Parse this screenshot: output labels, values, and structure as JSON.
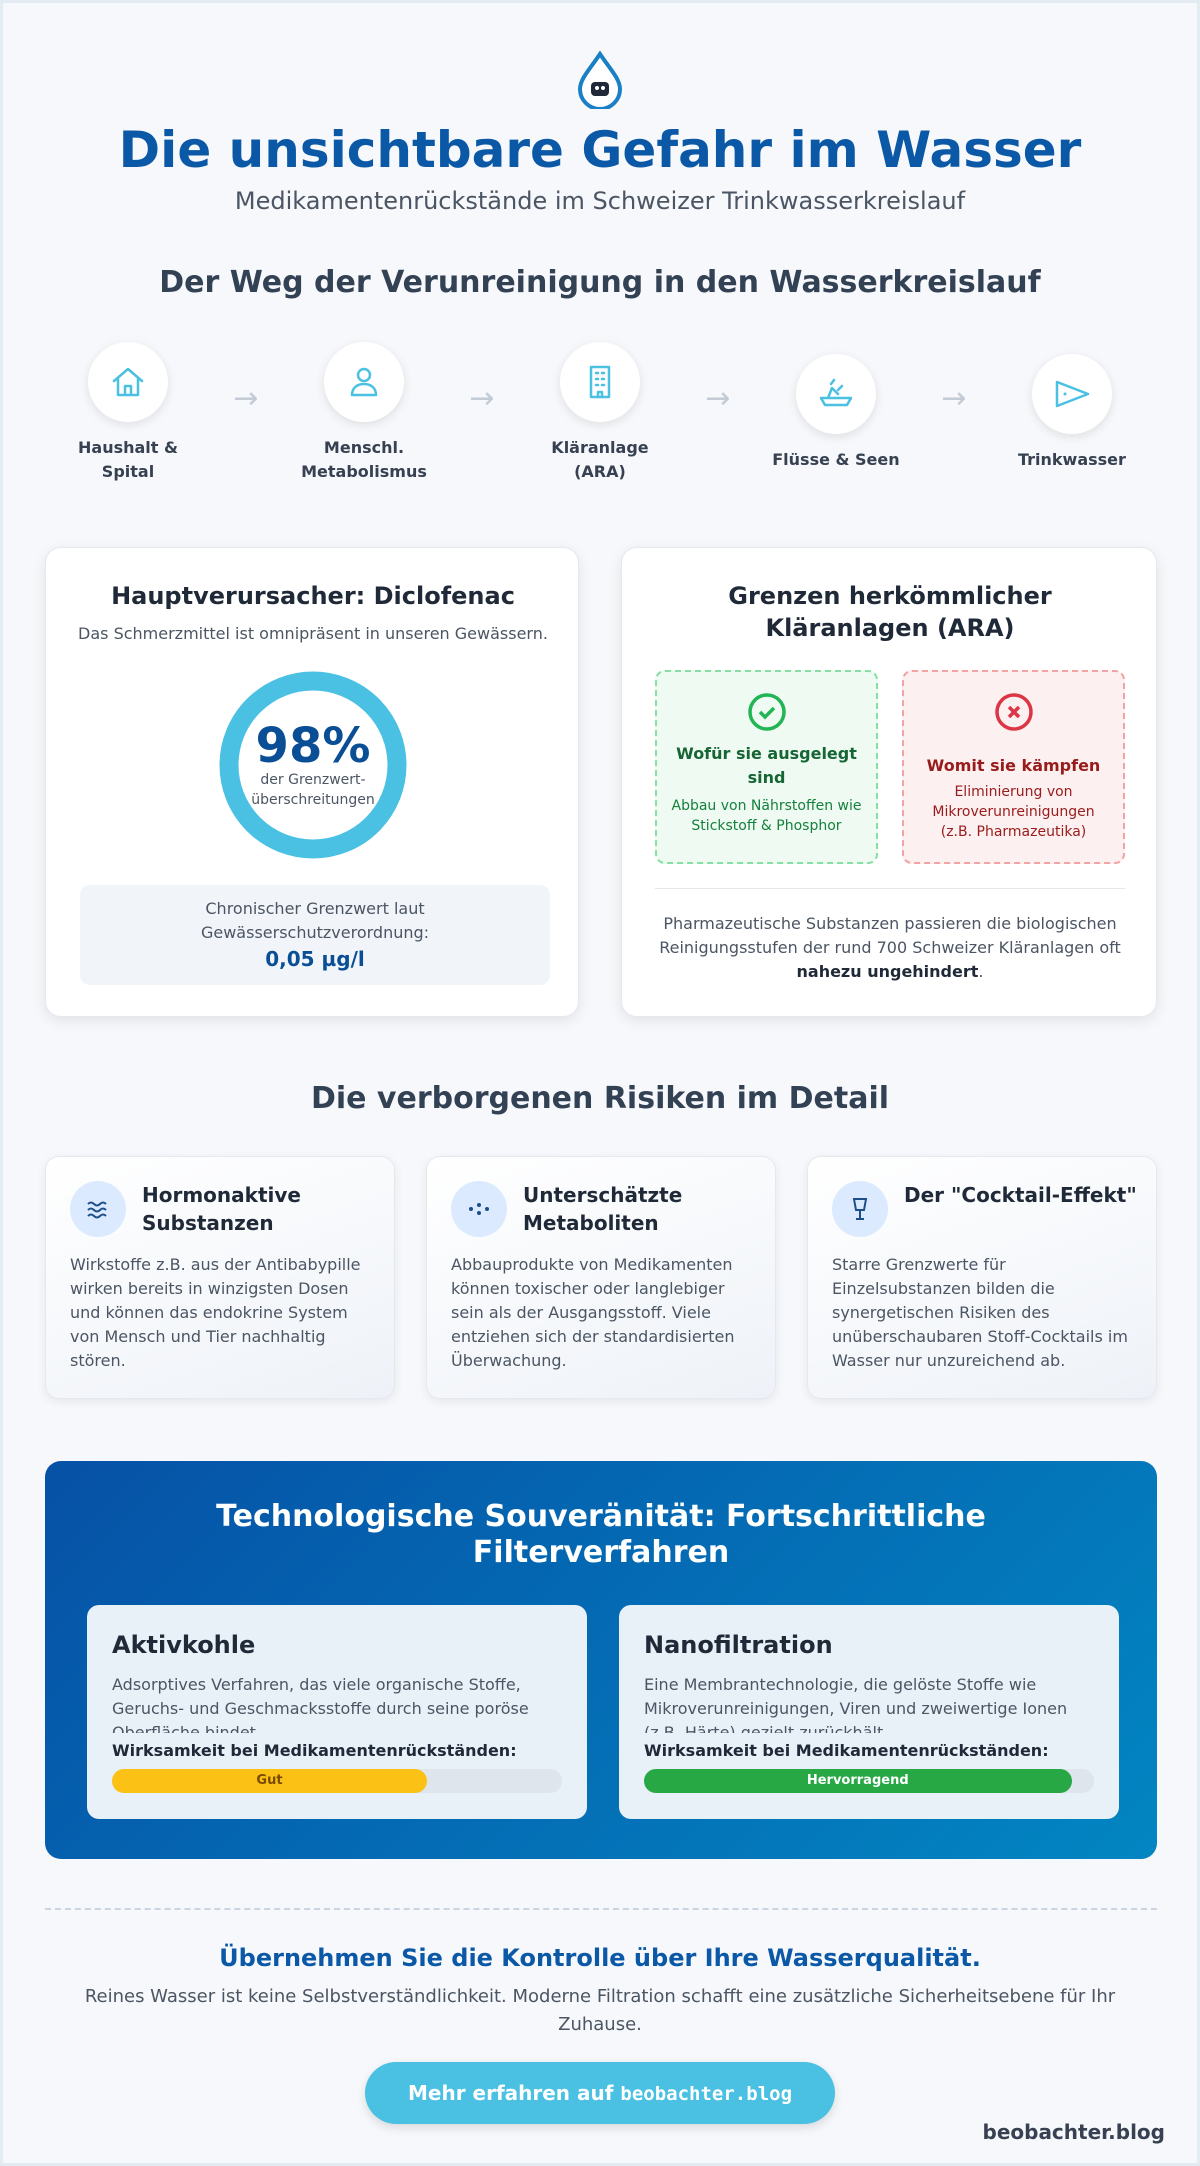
{
  "header": {
    "title": "Die unsichtbare Gefahr im Wasser",
    "subtitle": "Medikamentenrückstände im Schweizer Trinkwasserkreislauf"
  },
  "flow": {
    "heading": "Der Weg der Verunreinigung in den Wasserkreislauf",
    "steps": [
      "Haushalt & Spital",
      "Menschl. Metabolismus",
      "Kläranlage (ARA)",
      "Flüsse & Seen",
      "Trinkwasser"
    ]
  },
  "diclofenac": {
    "title": "Hauptverursacher: Diclofenac",
    "subtitle": "Das Schmerzmittel ist omnipräsent in unseren Gewässern.",
    "stat_value": "98%",
    "stat_caption": "der Grenzwert-überschreitungen",
    "limit_label": "Chronischer Grenzwert laut Gewässerschutzverordnung:",
    "limit_value": "0,05 µg/l"
  },
  "ara": {
    "title": "Grenzen herkömmlicher Kläranlagen (ARA)",
    "good": {
      "title": "Wofür sie ausgelegt sind",
      "text": "Abbau von Nährstoffen wie Stickstoff & Phosphor"
    },
    "bad": {
      "title": "Womit sie kämpfen",
      "text": "Eliminierung von Mikroverunreinigungen (z.B. Pharmazeutika)"
    },
    "note_before": "Pharmazeutische Substanzen passieren die biologischen Reinigungsstufen der rund 700 Schweizer Kläranlagen oft ",
    "note_bold": "nahezu ungehindert",
    "note_after": "."
  },
  "risks": {
    "heading": "Die verborgenen Risiken im Detail",
    "items": [
      {
        "title": "Hormonaktive Substanzen",
        "text": "Wirkstoffe z.B. aus der Antibabypille wirken bereits in winzigsten Dosen und können das endokrine System von Mensch und Tier nachhaltig stören."
      },
      {
        "title": "Unterschätzte Metaboliten",
        "text": "Abbauprodukte von Medikamenten können toxischer oder langlebiger sein als der Ausgangsstoff. Viele entziehen sich der standardisierten Überwachung."
      },
      {
        "title": "Der \"Cocktail-Effekt\"",
        "text": "Starre Grenzwerte für Einzelsubstanzen bilden die synergetischen Risiken des unüberschaubaren Stoff-Cocktails im Wasser nur unzureichend ab."
      }
    ]
  },
  "filters": {
    "heading": "Technologische Souveränität: Fortschrittliche Filterverfahren",
    "items": [
      {
        "title": "Aktivkohle",
        "text": "Adsorptives Verfahren, das viele organische Stoffe, Geruchs- und Geschmacksstoffe durch seine poröse Oberfläche bindet.",
        "rating_label": "Wirksamkeit bei Medikamentenrückständen:",
        "rating": "Gut",
        "bar_percent": 70,
        "color": "#fbc115"
      },
      {
        "title": "Nanofiltration",
        "text": "Eine Membrantechnologie, die gelöste Stoffe wie Mikroverunreinigungen, Viren und zweiwertige Ionen (z.B. Härte) gezielt zurückhält.",
        "rating_label": "Wirksamkeit bei Medikamentenrückständen:",
        "rating": "Hervorragend",
        "bar_percent": 95,
        "color": "#28a745"
      }
    ]
  },
  "cta": {
    "heading": "Übernehmen Sie die Kontrolle über Ihre Wasserqualität.",
    "text": "Reines Wasser ist keine Selbstverständlichkeit. Moderne Filtration schafft eine zusätzliche Sicherheitsebene für Ihr Zuhause.",
    "button_text": "Mehr erfahren auf",
    "button_code": "beobachter.blog"
  },
  "footer": {
    "brand": "beobachter.blog"
  }
}
